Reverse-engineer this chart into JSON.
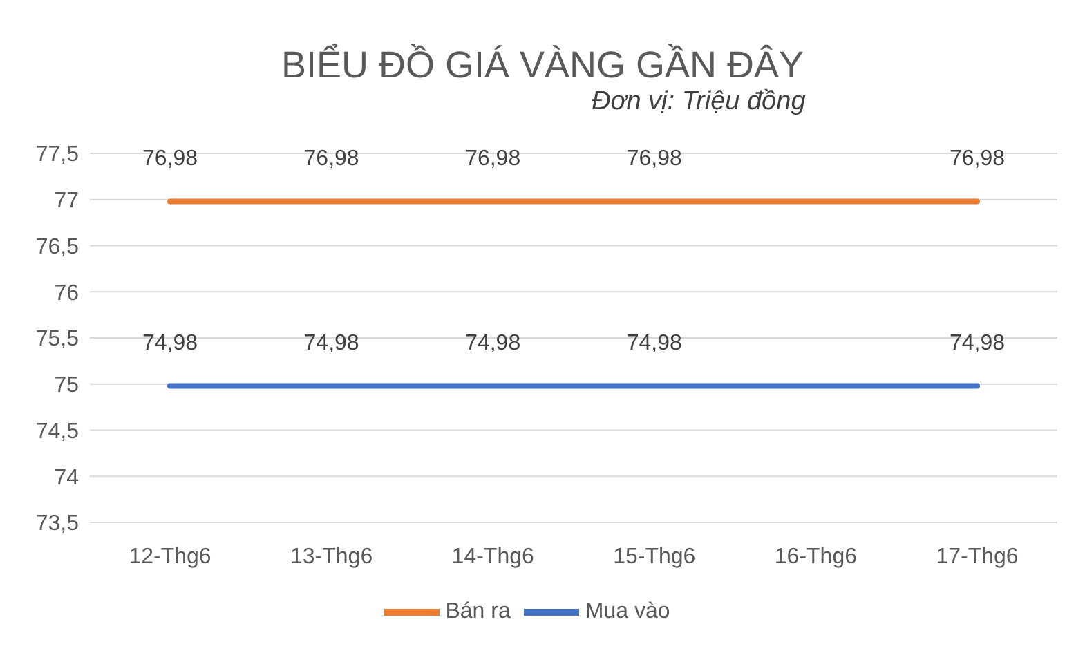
{
  "chart_data": {
    "type": "line",
    "title": "BIỂU ĐỒ GIÁ VÀNG GẦN ĐÂY",
    "subtitle": "Đơn vị: Triệu đồng",
    "categories": [
      "12-Thg6",
      "13-Thg6",
      "14-Thg6",
      "15-Thg6",
      "16-Thg6",
      "17-Thg6"
    ],
    "series": [
      {
        "name": "Mua vào",
        "color": "#4472c4",
        "values": [
          74.98,
          74.98,
          74.98,
          74.98,
          74.98,
          74.98
        ],
        "value_labels": [
          "74,98",
          "74,98",
          "74,98",
          "74,98",
          null,
          "74,98"
        ]
      },
      {
        "name": "Bán ra",
        "color": "#ed7d31",
        "values": [
          76.98,
          76.98,
          76.98,
          76.98,
          76.98,
          76.98
        ],
        "value_labels": [
          "76,98",
          "76,98",
          "76,98",
          "76,98",
          null,
          "76,98"
        ]
      }
    ],
    "ylim": [
      73.5,
      77.5
    ],
    "yticks": [
      {
        "value": 73.5,
        "label": "73,5"
      },
      74,
      {
        "value": 74.5,
        "label": "74,5"
      },
      75,
      {
        "value": 75.5,
        "label": "75,5"
      },
      76,
      {
        "value": 76.5,
        "label": "76,5"
      },
      77,
      {
        "value": 77.5,
        "label": "77,5"
      }
    ],
    "grid": "y",
    "legend": "bottom",
    "marker": "none",
    "line_style": "solid"
  }
}
